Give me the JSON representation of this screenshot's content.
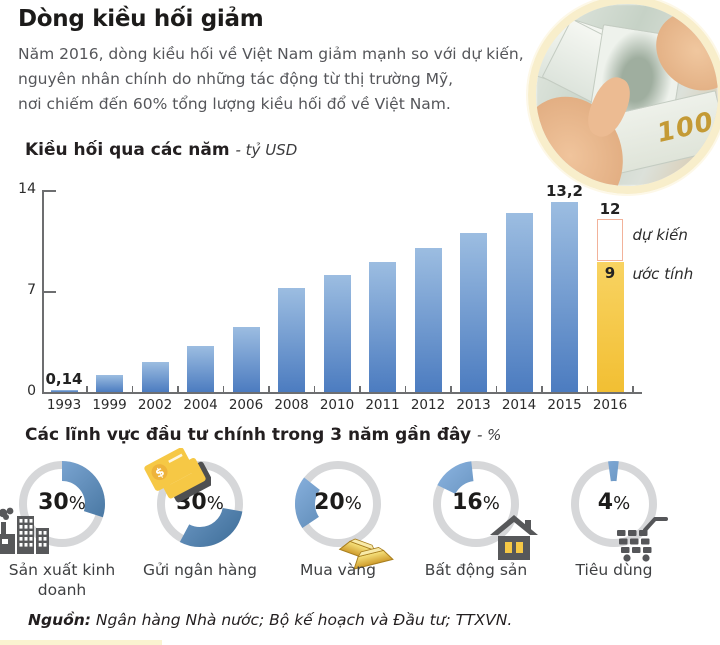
{
  "header": {
    "title": "Dòng kiều hối giảm",
    "intro_lines": [
      "Năm 2016, dòng kiều hối về Việt Nam giảm mạnh so với dự kiến,",
      "nguyên nhân chính do những tác động từ thị trường Mỹ,",
      "nơi chiếm đến 60% tổng lượng kiều hối đổ về Việt Nam."
    ]
  },
  "photo": {
    "bill_text": "100"
  },
  "labels": {
    "percent_sign": "%",
    "dollar_sign": "$"
  },
  "chart_data": [
    {
      "type": "bar",
      "title": "Kiều hối qua các năm",
      "unit": "- tỷ USD",
      "categories": [
        "1993",
        "1999",
        "2002",
        "2004",
        "2006",
        "2008",
        "2010",
        "2011",
        "2012",
        "2013",
        "2014",
        "2015",
        "2016"
      ],
      "values": [
        0.14,
        1.2,
        2.1,
        3.2,
        4.5,
        7.2,
        8.1,
        9,
        10,
        11,
        12.4,
        13.2,
        9
      ],
      "bar_labels": {
        "1993": "0,14",
        "2015": "13,2"
      },
      "y_ticks": [
        0,
        7,
        14
      ],
      "ylim": [
        0,
        14
      ],
      "grid": false,
      "special_2016": {
        "category": "2016",
        "forecast_value": 12,
        "forecast_label": "12",
        "forecast_legend": "dự kiến",
        "estimate_value": 9,
        "estimate_label": "9",
        "estimate_legend": "ước tính"
      }
    },
    {
      "type": "pie",
      "title": "Các lĩnh vực đầu tư chính trong 3 năm gần đây",
      "unit": "- %",
      "items": [
        {
          "label": "Sản xuất kinh doanh",
          "value": 30,
          "display": "30",
          "icon": "factory-icon",
          "arc_start": 0
        },
        {
          "label": "Gửi ngân hàng",
          "value": 30,
          "display": "30",
          "icon": "bank-cards-icon",
          "arc_start": 100
        },
        {
          "label": "Mua vàng",
          "value": 20,
          "display": "20",
          "icon": "gold-bars-icon",
          "arc_start": 236
        },
        {
          "label": "Bất động sản",
          "value": 16,
          "display": "16",
          "icon": "house-icon",
          "arc_start": 296
        },
        {
          "label": "Tiêu dùng",
          "value": 4,
          "display": "4",
          "icon": "cart-icon",
          "arc_start": 352
        }
      ]
    }
  ],
  "source": {
    "label": "Nguồn:",
    "text": " Ngân hàng Nhà nước; Bộ kế hoạch và Đầu tư; TTXVN."
  },
  "colors": {
    "bar_blue_top": "#9cbde1",
    "bar_blue_bottom": "#4c7cc0",
    "estimate_yellow": "#f6c845",
    "forecast_outline": "#f2b29a",
    "donut_ring_gray": "#d6d7d9",
    "donut_arc_blue": "#4d7ec1",
    "icon_gray": "#57585a",
    "photo_ring_cream": "#f8eecb"
  }
}
